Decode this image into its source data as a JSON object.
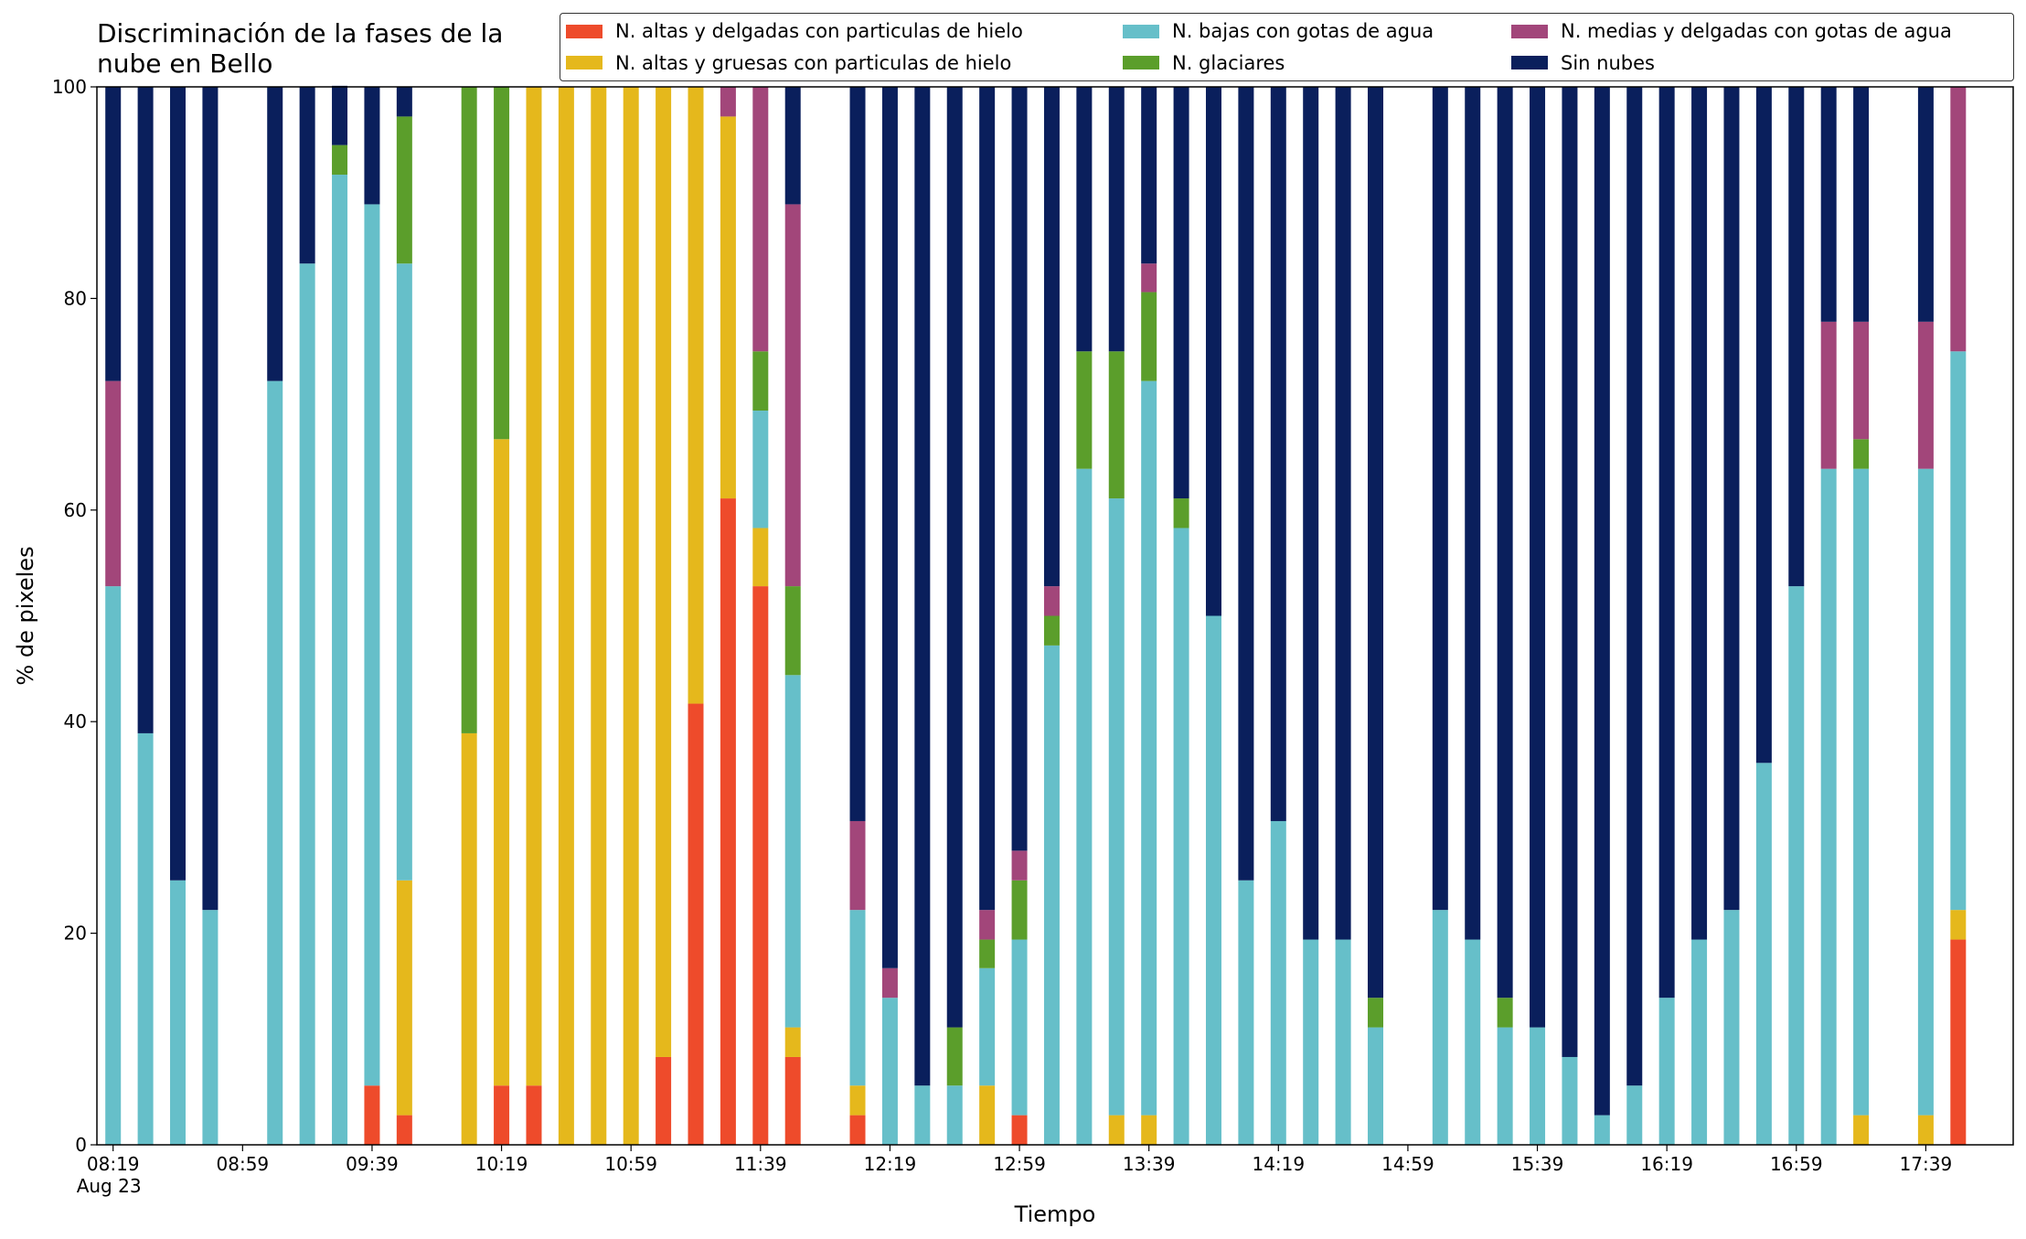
{
  "chart_data": {
    "type": "stacked_bar",
    "title": "Discriminación de la fases de la nube en Bello",
    "xlabel": "Tiempo",
    "ylabel": "% de pixeles",
    "date_label": "Aug 23",
    "x": [
      "08:19",
      "08:29",
      "08:39",
      "08:49",
      "09:09",
      "09:19",
      "09:29",
      "09:39",
      "09:49",
      "10:09",
      "10:19",
      "10:29",
      "10:39",
      "10:49",
      "10:59",
      "11:09",
      "11:19",
      "11:29",
      "11:39",
      "11:49",
      "12:09",
      "12:19",
      "12:29",
      "12:39",
      "12:49",
      "12:59",
      "13:09",
      "13:19",
      "13:29",
      "13:39",
      "13:49",
      "13:59",
      "14:09",
      "14:19",
      "14:29",
      "14:39",
      "14:49",
      "15:09",
      "15:19",
      "15:29",
      "15:39",
      "15:49",
      "15:59",
      "16:09",
      "16:19",
      "16:29",
      "16:39",
      "16:49",
      "16:59",
      "17:09",
      "17:19",
      "17:39",
      "17:49"
    ],
    "xlim": [
      "08:14",
      "18:06"
    ],
    "xticks": [
      "08:19",
      "08:59",
      "09:39",
      "10:19",
      "10:59",
      "11:39",
      "12:19",
      "12:59",
      "13:39",
      "14:19",
      "14:59",
      "15:39",
      "16:19",
      "16:59",
      "17:39"
    ],
    "ylim": [
      0,
      100
    ],
    "yticks": [
      0,
      20,
      40,
      60,
      80,
      100
    ],
    "series": [
      {
        "name": "N. altas y delgadas con particulas de hielo",
        "color": "#ee4b2b",
        "values": [
          0,
          0,
          0,
          0,
          0,
          0,
          0,
          5.6,
          2.8,
          0,
          5.6,
          5.6,
          0,
          0,
          0,
          8.3,
          41.7,
          61.1,
          52.8,
          8.3,
          2.8,
          0,
          0,
          0,
          0,
          2.8,
          0,
          0,
          0,
          0,
          0,
          0,
          0,
          0,
          0,
          0,
          0,
          0,
          0,
          0,
          0,
          0,
          0,
          0,
          0,
          0,
          0,
          0,
          0,
          0,
          0,
          0,
          19.4
        ]
      },
      {
        "name": "N. altas y gruesas con particulas de hielo",
        "color": "#e5b81c",
        "values": [
          0,
          0,
          0,
          0,
          0,
          0,
          0,
          0,
          22.2,
          38.9,
          61.1,
          94.4,
          100,
          100,
          100,
          91.7,
          58.3,
          36.1,
          5.5,
          2.8,
          2.8,
          0,
          0,
          0,
          5.6,
          0,
          0,
          0,
          2.8,
          2.8,
          0,
          0,
          0,
          0,
          0,
          0,
          0,
          0,
          0,
          0,
          0,
          0,
          0,
          0,
          0,
          0,
          0,
          0,
          0,
          0,
          2.8,
          2.8,
          2.8
        ]
      },
      {
        "name": "N. bajas con gotas de agua",
        "color": "#66bfc9",
        "values": [
          52.8,
          38.9,
          25,
          22.2,
          72.2,
          83.3,
          91.7,
          83.3,
          58.3,
          0,
          0,
          0,
          0,
          0,
          0,
          0,
          0,
          0,
          11.1,
          33.3,
          16.6,
          13.9,
          5.6,
          5.6,
          11.1,
          16.6,
          47.2,
          63.9,
          58.3,
          69.4,
          58.3,
          50,
          25,
          30.6,
          19.4,
          19.4,
          11.1,
          22.2,
          19.4,
          11.1,
          11.1,
          8.3,
          2.8,
          5.6,
          13.9,
          19.4,
          22.2,
          36.1,
          52.8,
          63.9,
          61.1,
          61.1,
          52.8
        ]
      },
      {
        "name": "N. glaciares",
        "color": "#5b9e2b",
        "values": [
          0,
          0,
          0,
          0,
          0,
          0,
          2.8,
          0,
          13.9,
          61.1,
          33.3,
          0,
          0,
          0,
          0,
          0,
          0,
          0,
          5.6,
          8.4,
          0,
          0,
          0,
          5.5,
          2.7,
          5.6,
          2.8,
          11.1,
          13.9,
          8.4,
          2.8,
          0,
          0,
          0,
          0,
          0,
          2.8,
          0,
          0,
          2.8,
          0,
          0,
          0,
          0,
          0,
          0,
          0,
          0,
          0,
          0,
          2.8,
          0,
          0
        ]
      },
      {
        "name": "N. medias y delgadas con gotas de agua",
        "color": "#a2467a",
        "values": [
          19.4,
          0,
          0,
          0,
          0,
          0,
          0,
          0,
          0,
          0,
          0,
          0,
          0,
          0,
          0,
          0,
          0,
          2.8,
          25,
          36.1,
          8.4,
          2.8,
          0,
          0,
          2.8,
          2.8,
          2.8,
          0,
          0,
          2.7,
          0,
          0,
          0,
          0,
          0,
          0,
          0,
          0,
          0,
          0,
          0,
          0,
          0,
          0,
          0,
          0,
          0,
          0,
          0,
          13.9,
          11.1,
          13.9,
          25
        ]
      },
      {
        "name": "Sin nubes",
        "color": "#0a1f5c",
        "values": [
          27.8,
          61.1,
          75,
          77.8,
          27.8,
          16.7,
          5.6,
          11.1,
          2.8,
          0,
          0,
          0,
          0,
          0,
          0,
          0,
          0,
          0,
          0,
          11.1,
          69.4,
          83.3,
          94.4,
          88.9,
          77.8,
          72.2,
          47.2,
          25,
          25,
          16.7,
          38.9,
          50,
          75,
          69.4,
          80.6,
          80.6,
          86.1,
          77.8,
          80.6,
          86.1,
          88.9,
          91.7,
          97.2,
          94.4,
          86.1,
          80.6,
          77.8,
          63.9,
          47.2,
          22.2,
          22.2,
          22.2,
          0
        ]
      }
    ]
  }
}
